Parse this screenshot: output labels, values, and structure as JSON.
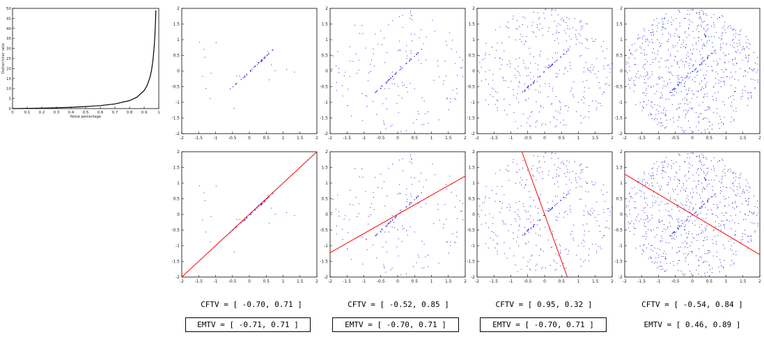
{
  "chart_data": [
    {
      "type": "line",
      "xlabel": "Noise percentage",
      "ylabel": "Outlier/inlier ratio",
      "xlim": [
        0,
        1
      ],
      "ylim": [
        0,
        50
      ],
      "x_ticks": [
        "0",
        "0.1",
        "0.2",
        "0.3",
        "0.4",
        "0.5",
        "0.6",
        "0.7",
        "0.8",
        "0.9",
        "1"
      ],
      "y_ticks": [
        "0",
        "5",
        "10",
        "15",
        "20",
        "25",
        "30",
        "35",
        "40",
        "45",
        "50"
      ],
      "x": [
        0,
        0.1,
        0.2,
        0.3,
        0.4,
        0.5,
        0.6,
        0.7,
        0.8,
        0.85,
        0.9,
        0.92,
        0.94,
        0.95,
        0.96,
        0.97,
        0.975,
        0.98
      ],
      "y": [
        0,
        0.11,
        0.25,
        0.43,
        0.67,
        1.0,
        1.5,
        2.33,
        4.0,
        5.67,
        9.0,
        11.5,
        15.67,
        19.0,
        24.0,
        32.3,
        39.0,
        49.0
      ]
    },
    {
      "type": "scatter",
      "panels": [
        {
          "row": "top",
          "col": 1,
          "noise": 0.3,
          "inliers": 40
        },
        {
          "row": "top",
          "col": 2,
          "noise": 0.8,
          "inliers": 40
        },
        {
          "row": "top",
          "col": 3,
          "noise": 0.9,
          "inliers": 40
        },
        {
          "row": "top",
          "col": 4,
          "noise": 0.95,
          "inliers": 40
        },
        {
          "row": "bottom",
          "col": 1,
          "noise": 0.3,
          "inliers": 40,
          "line_dir": [
            0.71,
            0.71
          ]
        },
        {
          "row": "bottom",
          "col": 2,
          "noise": 0.8,
          "inliers": 40,
          "line_dir": [
            0.85,
            0.52
          ]
        },
        {
          "row": "bottom",
          "col": 3,
          "noise": 0.9,
          "inliers": 40,
          "line_dir": [
            0.32,
            -0.95
          ]
        },
        {
          "row": "bottom",
          "col": 4,
          "noise": 0.95,
          "inliers": 40,
          "line_dir": [
            0.84,
            -0.54
          ]
        }
      ],
      "xlim": [
        -2,
        2
      ],
      "ylim": [
        -2,
        2
      ],
      "x_ticks": [
        "-2",
        "-1.5",
        "-1",
        "-0.5",
        "0",
        "0.5",
        "1",
        "1.5",
        "2"
      ],
      "y_ticks": [
        "2",
        "1.5",
        "1",
        "0.5",
        "0",
        "-0.5",
        "-1",
        "-1.5",
        "-2"
      ]
    }
  ],
  "captions": [
    {
      "cftv": "CFTV = [ -0.70, 0.71 ]",
      "emtv": "EMTV = [ -0.71, 0.71 ]",
      "emtv_boxed": true
    },
    {
      "cftv": "CFTV = [ -0.52, 0.85 ]",
      "emtv": "EMTV = [ -0.70, 0.71 ]",
      "emtv_boxed": true
    },
    {
      "cftv": "CFTV = [ 0.95, 0.32 ]",
      "emtv": "EMTV = [ -0.70, 0.71 ]",
      "emtv_boxed": true
    },
    {
      "cftv": "CFTV = [ -0.54, 0.84 ]",
      "emtv": "EMTV = [ 0.46, 0.89 ]",
      "emtv_boxed": false
    }
  ],
  "colors": {
    "points": "#1a1adf",
    "fit_line": "#ff0000",
    "curve": "#000000"
  }
}
